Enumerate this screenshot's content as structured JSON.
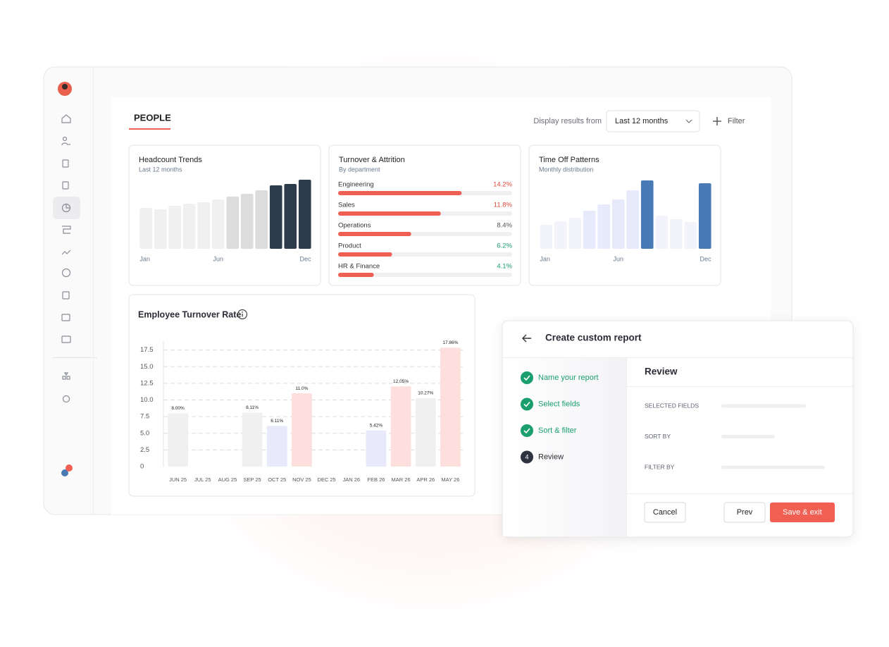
{
  "header": {
    "tab": "PEOPLE",
    "display_label": "Display results from",
    "period": "Last 12 months",
    "filter": "Filter"
  },
  "chart_data": [
    {
      "type": "bar",
      "title": "Headcount Trends",
      "subtitle": "Last 12 months",
      "categories": [
        "Jan",
        null,
        null,
        null,
        null,
        "Jun",
        null,
        null,
        null,
        null,
        null,
        "Dec"
      ],
      "values": [
        58,
        56,
        61,
        64,
        66,
        70,
        74,
        78,
        83,
        90,
        92,
        98
      ],
      "colors": [
        "#f0f0f0",
        "#f0f0f0",
        "#f0f0f0",
        "#f0f0f0",
        "#f0f0f0",
        "#f0f0f0",
        "#dcdcdc",
        "#dcdcdc",
        "#dcdcdc",
        "#2d3a4b",
        "#2d3a4b",
        "#2d3a4b"
      ],
      "ylim": [
        0,
        100
      ]
    },
    {
      "type": "hbar",
      "title": "Turnover & Attrition",
      "subtitle": "By department",
      "categories": [
        "Engineering",
        "Sales",
        "Operations",
        "Product",
        "HR & Finance"
      ],
      "values": [
        14.2,
        11.8,
        8.4,
        6.2,
        4.1
      ],
      "value_labels": [
        "14.2%",
        "11.8%",
        "8.4%",
        "6.2%",
        "4.1%"
      ],
      "color": "#ef5f53",
      "label_colors": [
        "#e04a3f",
        "#e04a3f",
        "#555555",
        "#1a9e6e",
        "#1a9e6e"
      ],
      "xlim": [
        0,
        20
      ]
    },
    {
      "type": "bar",
      "title": "Time Off Patterns",
      "subtitle": "Monthly distribution",
      "categories": [
        "Jan",
        null,
        null,
        null,
        null,
        "Jun",
        null,
        null,
        null,
        null,
        null,
        "Dec"
      ],
      "values": [
        34,
        39,
        44,
        54,
        63,
        70,
        83,
        97,
        47,
        42,
        38,
        93
      ],
      "colors": [
        "#f3f4fb",
        "#f3f4fb",
        "#f3f4fb",
        "#e7eafb",
        "#e7eafb",
        "#e7eafb",
        "#e7eafb",
        "#4a7ab5",
        "#f3f4fb",
        "#f3f4fb",
        "#f3f4fb",
        "#4a7ab5"
      ],
      "ylim": [
        0,
        100
      ]
    },
    {
      "type": "bar",
      "title": "Employee Turnover Rate",
      "categories": [
        "JUN 25",
        "JUL 25",
        "AUG 25",
        "SEP 25",
        "OCT 25",
        "NOV 25",
        "DEC 25",
        "JAN 26",
        "FEB 26",
        "MAR 26",
        "APR 26",
        "MAY 26"
      ],
      "values": [
        8,
        null,
        null,
        8.11,
        6.11,
        11,
        null,
        null,
        5.42,
        12.05,
        10.27,
        17.86
      ],
      "value_labels": [
        "8.00%",
        null,
        null,
        "8.11%",
        "6.11%",
        "11.0%",
        null,
        null,
        "5.42%",
        "12.05%",
        "10.27%",
        "17.86%"
      ],
      "colors": [
        "#f0f0f0",
        null,
        null,
        "#f0f0f0",
        "#e8eafb",
        "#fde0dd",
        null,
        null,
        "#e8eafb",
        "#fde0dd",
        "#f0f0f0",
        "#fde0dd"
      ],
      "ylim": [
        0,
        20
      ],
      "yticks": [
        0,
        2.5,
        {
          "value": 5,
          "label": "5.0"
        },
        7.5,
        {
          "value": 10,
          "label": "10.0"
        },
        12.5,
        {
          "value": 15,
          "label": "15.0"
        },
        17.5
      ],
      "grid": true
    }
  ],
  "dialog": {
    "title": "Create custom report",
    "steps": [
      {
        "label": "Name your report",
        "status": "done"
      },
      {
        "label": "Select fields",
        "status": "done"
      },
      {
        "label": "Sort & filter",
        "status": "done"
      },
      {
        "label": "Review",
        "status": "current",
        "number": 4
      }
    ],
    "section_title": "Review",
    "fields": [
      "SELECTED FIELDS",
      "SORT BY",
      "FILTER BY"
    ],
    "buttons": {
      "cancel": "Cancel",
      "prev": "Prev",
      "save": "Save & exit"
    }
  }
}
